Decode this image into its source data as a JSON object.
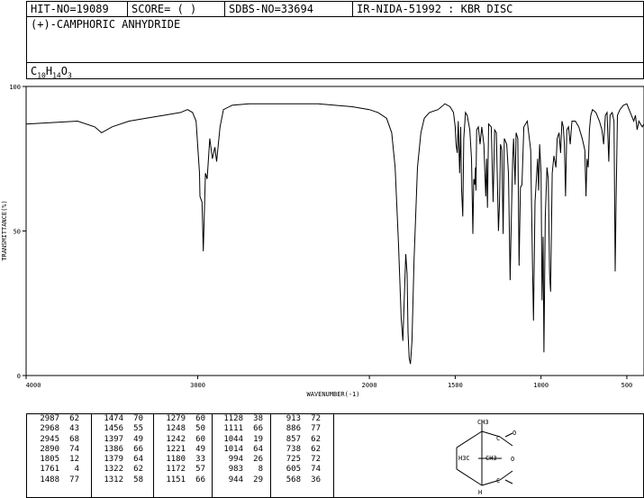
{
  "header": {
    "hit_no": "HIT-NO=19089",
    "score": "SCORE=  (   )",
    "sdbs_no": "SDBS-NO=33694",
    "ir_code": "IR-NIDA-51992 : KBR DISC"
  },
  "compound_name": "(+)-CAMPHORIC ANHYDRIDE",
  "formula": {
    "c": "C",
    "c_n": "10",
    "h": "H",
    "h_n": "14",
    "o": "O",
    "o_n": "3"
  },
  "structure": {
    "label_top": "CH3",
    "label_left": "H3C",
    "label_mid": "CH3",
    "label_h": "H",
    "label_o1": "O",
    "label_o2": "O",
    "label_c1": "C",
    "label_c2": "C"
  },
  "chart_data": {
    "type": "line",
    "xlabel": "WAVENUMBER(-1)",
    "ylabel": "TRANSMITTANCE(%)",
    "xlim": [
      4000,
      400
    ],
    "ylim": [
      0,
      100
    ],
    "x_ticks": [
      4000,
      3000,
      2000,
      1500,
      1000,
      500
    ],
    "y_ticks": [
      0,
      50,
      100
    ],
    "series": [
      {
        "points": [
          [
            4000,
            87
          ],
          [
            3850,
            87.5
          ],
          [
            3700,
            88
          ],
          [
            3600,
            86
          ],
          [
            3560,
            84
          ],
          [
            3500,
            86
          ],
          [
            3400,
            88
          ],
          [
            3300,
            89
          ],
          [
            3200,
            90
          ],
          [
            3100,
            91
          ],
          [
            3060,
            92
          ],
          [
            3030,
            91
          ],
          [
            3010,
            88
          ],
          [
            2990,
            70
          ],
          [
            2987,
            62
          ],
          [
            2975,
            60
          ],
          [
            2968,
            43
          ],
          [
            2955,
            70
          ],
          [
            2945,
            68
          ],
          [
            2930,
            82
          ],
          [
            2915,
            75
          ],
          [
            2900,
            79
          ],
          [
            2890,
            74
          ],
          [
            2870,
            86
          ],
          [
            2850,
            92
          ],
          [
            2800,
            93.5
          ],
          [
            2700,
            94
          ],
          [
            2600,
            94
          ],
          [
            2500,
            94
          ],
          [
            2400,
            94
          ],
          [
            2300,
            94
          ],
          [
            2200,
            93.5
          ],
          [
            2100,
            93
          ],
          [
            2000,
            92
          ],
          [
            1950,
            91
          ],
          [
            1900,
            89
          ],
          [
            1870,
            84
          ],
          [
            1850,
            72
          ],
          [
            1830,
            45
          ],
          [
            1815,
            20
          ],
          [
            1805,
            12
          ],
          [
            1795,
            30
          ],
          [
            1788,
            42
          ],
          [
            1780,
            35
          ],
          [
            1775,
            15
          ],
          [
            1768,
            6
          ],
          [
            1761,
            4
          ],
          [
            1752,
            12
          ],
          [
            1740,
            40
          ],
          [
            1720,
            72
          ],
          [
            1700,
            84
          ],
          [
            1680,
            89
          ],
          [
            1650,
            91
          ],
          [
            1600,
            92
          ],
          [
            1560,
            94
          ],
          [
            1530,
            93
          ],
          [
            1510,
            91
          ],
          [
            1500,
            86
          ],
          [
            1495,
            80
          ],
          [
            1488,
            77
          ],
          [
            1482,
            88
          ],
          [
            1474,
            70
          ],
          [
            1468,
            86
          ],
          [
            1463,
            65
          ],
          [
            1456,
            55
          ],
          [
            1450,
            82
          ],
          [
            1440,
            91
          ],
          [
            1430,
            90
          ],
          [
            1415,
            85
          ],
          [
            1405,
            75
          ],
          [
            1397,
            49
          ],
          [
            1392,
            68
          ],
          [
            1386,
            66
          ],
          [
            1382,
            72
          ],
          [
            1379,
            64
          ],
          [
            1375,
            85
          ],
          [
            1365,
            86
          ],
          [
            1355,
            80
          ],
          [
            1345,
            86
          ],
          [
            1333,
            80
          ],
          [
            1322,
            62
          ],
          [
            1317,
            75
          ],
          [
            1312,
            58
          ],
          [
            1305,
            87
          ],
          [
            1290,
            86
          ],
          [
            1279,
            60
          ],
          [
            1270,
            85
          ],
          [
            1260,
            84
          ],
          [
            1248,
            50
          ],
          [
            1242,
            60
          ],
          [
            1236,
            80
          ],
          [
            1228,
            78
          ],
          [
            1221,
            49
          ],
          [
            1214,
            82
          ],
          [
            1200,
            80
          ],
          [
            1190,
            70
          ],
          [
            1180,
            33
          ],
          [
            1176,
            45
          ],
          [
            1172,
            57
          ],
          [
            1165,
            75
          ],
          [
            1160,
            82
          ],
          [
            1151,
            66
          ],
          [
            1145,
            84
          ],
          [
            1135,
            82
          ],
          [
            1128,
            38
          ],
          [
            1120,
            65
          ],
          [
            1111,
            66
          ],
          [
            1100,
            86
          ],
          [
            1080,
            88
          ],
          [
            1060,
            78
          ],
          [
            1050,
            40
          ],
          [
            1044,
            19
          ],
          [
            1035,
            60
          ],
          [
            1020,
            75
          ],
          [
            1014,
            64
          ],
          [
            1008,
            80
          ],
          [
            1000,
            70
          ],
          [
            994,
            26
          ],
          [
            988,
            48
          ],
          [
            983,
            8
          ],
          [
            975,
            55
          ],
          [
            965,
            72
          ],
          [
            958,
            68
          ],
          [
            950,
            35
          ],
          [
            944,
            29
          ],
          [
            935,
            70
          ],
          [
            925,
            76
          ],
          [
            913,
            72
          ],
          [
            906,
            82
          ],
          [
            895,
            84
          ],
          [
            886,
            77
          ],
          [
            878,
            88
          ],
          [
            870,
            86
          ],
          [
            864,
            80
          ],
          [
            857,
            62
          ],
          [
            850,
            85
          ],
          [
            840,
            86
          ],
          [
            830,
            80
          ],
          [
            820,
            88
          ],
          [
            800,
            88
          ],
          [
            780,
            86
          ],
          [
            760,
            82
          ],
          [
            745,
            78
          ],
          [
            738,
            62
          ],
          [
            732,
            75
          ],
          [
            725,
            72
          ],
          [
            718,
            85
          ],
          [
            710,
            90
          ],
          [
            700,
            92
          ],
          [
            680,
            91
          ],
          [
            660,
            88
          ],
          [
            645,
            85
          ],
          [
            635,
            80
          ],
          [
            625,
            90
          ],
          [
            615,
            91
          ],
          [
            605,
            74
          ],
          [
            598,
            90
          ],
          [
            585,
            91
          ],
          [
            575,
            88
          ],
          [
            568,
            36
          ],
          [
            562,
            62
          ],
          [
            555,
            90
          ],
          [
            540,
            92
          ],
          [
            520,
            93.5
          ],
          [
            500,
            94
          ],
          [
            480,
            91
          ],
          [
            460,
            88
          ],
          [
            450,
            90
          ],
          [
            440,
            85
          ],
          [
            430,
            88
          ],
          [
            410,
            86
          ],
          [
            400,
            87
          ]
        ]
      }
    ]
  },
  "peak_table": {
    "columns": [
      [
        [
          "2987",
          "62"
        ],
        [
          "2968",
          "43"
        ],
        [
          "2945",
          "68"
        ],
        [
          "2890",
          "74"
        ],
        [
          "1805",
          "12"
        ],
        [
          "1761",
          "4"
        ],
        [
          "1488",
          "77"
        ]
      ],
      [
        [
          "1474",
          "70"
        ],
        [
          "1456",
          "55"
        ],
        [
          "1397",
          "49"
        ],
        [
          "1386",
          "66"
        ],
        [
          "1379",
          "64"
        ],
        [
          "1322",
          "62"
        ],
        [
          "1312",
          "58"
        ]
      ],
      [
        [
          "1279",
          "60"
        ],
        [
          "1248",
          "50"
        ],
        [
          "1242",
          "60"
        ],
        [
          "1221",
          "49"
        ],
        [
          "1180",
          "33"
        ],
        [
          "1172",
          "57"
        ],
        [
          "1151",
          "66"
        ]
      ],
      [
        [
          "1128",
          "38"
        ],
        [
          "1111",
          "66"
        ],
        [
          "1044",
          "19"
        ],
        [
          "1014",
          "64"
        ],
        [
          "994",
          "26"
        ],
        [
          "983",
          "8"
        ],
        [
          "944",
          "29"
        ]
      ],
      [
        [
          "913",
          "72"
        ],
        [
          "886",
          "77"
        ],
        [
          "857",
          "62"
        ],
        [
          "738",
          "62"
        ],
        [
          "725",
          "72"
        ],
        [
          "605",
          "74"
        ],
        [
          "568",
          "36"
        ]
      ]
    ]
  }
}
